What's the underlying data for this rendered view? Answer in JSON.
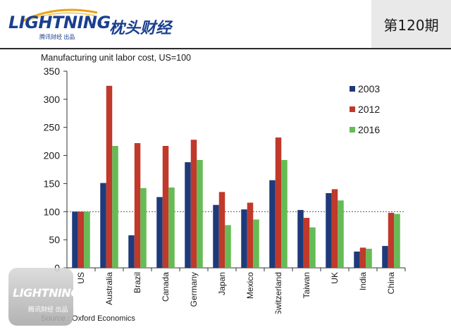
{
  "header": {
    "logo_text": "LIGHTNING",
    "logo_sub": "腾讯财经 出品",
    "brand_cn": "枕头财经",
    "issue": "第120期"
  },
  "watermark": {
    "text": "LIGHTNING",
    "sub": "腾讯财经 出品"
  },
  "chart_data": {
    "type": "bar",
    "title": "Manufacturing unit labor cost, US=100",
    "source": "Source : Oxford Economics",
    "categories": [
      "US",
      "Australia",
      "Brazil",
      "Canada",
      "Germany",
      "Japan",
      "Mexico",
      "Switzerland",
      "Taiwan",
      "UK",
      "India",
      "China"
    ],
    "series": [
      {
        "name": "2003",
        "color": "#1f3a7a",
        "values": [
          100,
          151,
          58,
          126,
          188,
          112,
          104,
          156,
          103,
          133,
          29,
          39
        ]
      },
      {
        "name": "2012",
        "color": "#c0392b",
        "values": [
          100,
          324,
          222,
          217,
          228,
          135,
          116,
          232,
          89,
          140,
          36,
          98
        ]
      },
      {
        "name": "2016",
        "color": "#66bb55",
        "values": [
          100,
          217,
          142,
          143,
          192,
          76,
          86,
          192,
          72,
          120,
          34,
          96
        ]
      }
    ],
    "ylim": [
      0,
      350
    ],
    "yticks": [
      0,
      50,
      100,
      150,
      200,
      250,
      300,
      350
    ],
    "reference_line": 100,
    "legend_position": "top-right",
    "grid": false
  }
}
